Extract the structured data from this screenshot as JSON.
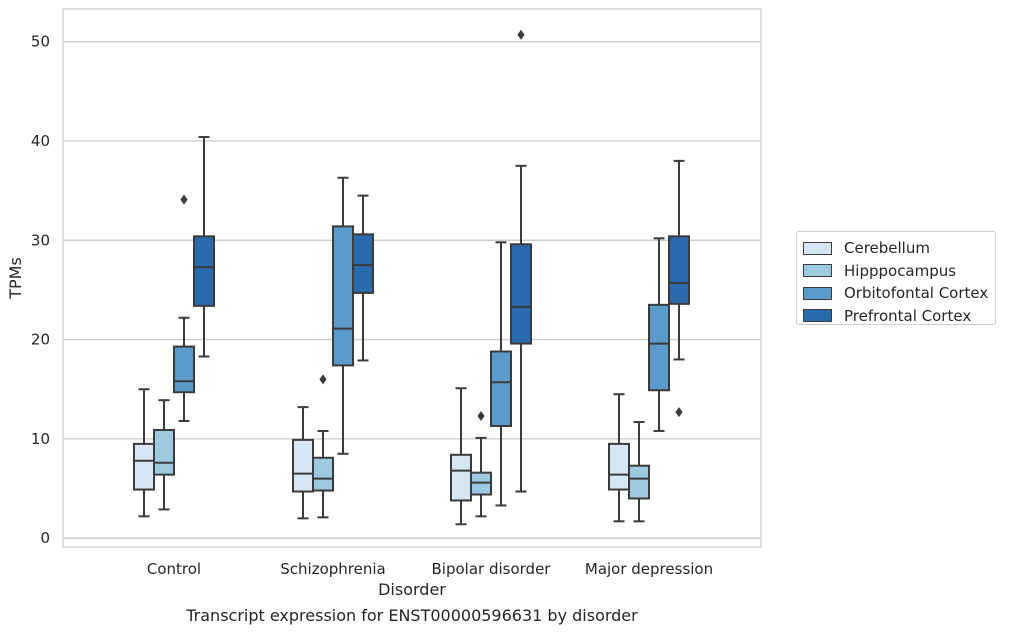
{
  "chart_data": {
    "type": "box",
    "title": "",
    "xlabel": "Disorder",
    "ylabel": "TPMs",
    "ylim": [
      -1,
      53
    ],
    "yticks": [
      0,
      10,
      20,
      30,
      40,
      50
    ],
    "grid": "horizontal",
    "legend_position": "right, outside plot",
    "categories": [
      "Control",
      "Schizophrenia",
      "Bipolar disorder",
      "Major depression"
    ],
    "series": [
      {
        "name": "Cerebellum",
        "color": "#d6e6f4",
        "boxes": [
          {
            "whisker_low": 2.2,
            "q1": 4.9,
            "median": 7.8,
            "q3": 9.5,
            "whisker_high": 15.0,
            "outliers": []
          },
          {
            "whisker_low": 2.0,
            "q1": 4.7,
            "median": 6.5,
            "q3": 9.9,
            "whisker_high": 13.2,
            "outliers": []
          },
          {
            "whisker_low": 1.4,
            "q1": 3.8,
            "median": 6.8,
            "q3": 8.4,
            "whisker_high": 15.1,
            "outliers": []
          },
          {
            "whisker_low": 1.7,
            "q1": 4.9,
            "median": 6.4,
            "q3": 9.5,
            "whisker_high": 14.5,
            "outliers": []
          }
        ]
      },
      {
        "name": "Hipppocampus",
        "color": "#9ecae1",
        "boxes": [
          {
            "whisker_low": 2.9,
            "q1": 6.4,
            "median": 7.6,
            "q3": 10.9,
            "whisker_high": 13.9,
            "outliers": []
          },
          {
            "whisker_low": 2.1,
            "q1": 4.8,
            "median": 6.0,
            "q3": 8.1,
            "whisker_high": 10.8,
            "outliers": [
              16.0
            ]
          },
          {
            "whisker_low": 2.2,
            "q1": 4.4,
            "median": 5.6,
            "q3": 6.6,
            "whisker_high": 10.1,
            "outliers": [
              12.3
            ]
          },
          {
            "whisker_low": 1.7,
            "q1": 4.0,
            "median": 6.0,
            "q3": 7.3,
            "whisker_high": 11.7,
            "outliers": []
          }
        ]
      },
      {
        "name": "Orbitofontal Cortex",
        "color": "#5b9bcb",
        "boxes": [
          {
            "whisker_low": 11.8,
            "q1": 14.7,
            "median": 15.8,
            "q3": 19.3,
            "whisker_high": 22.2,
            "outliers": [
              34.1
            ]
          },
          {
            "whisker_low": 8.5,
            "q1": 17.4,
            "median": 21.1,
            "q3": 31.4,
            "whisker_high": 36.3,
            "outliers": []
          },
          {
            "whisker_low": 3.3,
            "q1": 11.3,
            "median": 15.7,
            "q3": 18.8,
            "whisker_high": 29.8,
            "outliers": []
          },
          {
            "whisker_low": 10.8,
            "q1": 14.9,
            "median": 19.6,
            "q3": 23.5,
            "whisker_high": 30.2,
            "outliers": []
          }
        ]
      },
      {
        "name": "Prefrontal Cortex",
        "color": "#2b69ad",
        "boxes": [
          {
            "whisker_low": 18.3,
            "q1": 23.4,
            "median": 27.3,
            "q3": 30.4,
            "whisker_high": 40.4,
            "outliers": []
          },
          {
            "whisker_low": 17.9,
            "q1": 24.7,
            "median": 27.5,
            "q3": 30.6,
            "whisker_high": 34.5,
            "outliers": []
          },
          {
            "whisker_low": 4.7,
            "q1": 19.6,
            "median": 23.3,
            "q3": 29.6,
            "whisker_high": 37.5,
            "outliers": [
              50.7
            ]
          },
          {
            "whisker_low": 18.0,
            "q1": 23.6,
            "median": 25.7,
            "q3": 30.4,
            "whisker_high": 38.0,
            "outliers": [
              12.7
            ]
          }
        ]
      }
    ],
    "caption": "Transcript expression for ENST00000596631 by disorder"
  }
}
